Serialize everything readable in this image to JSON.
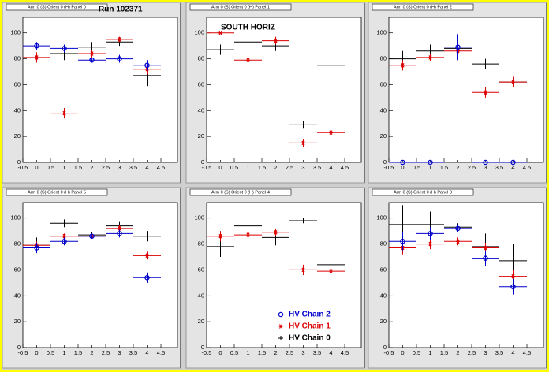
{
  "chart_data": [
    {
      "type": "errorbar",
      "title": "Arm 0 (S) Orient 0 (H) Panel 0",
      "annotation": "Run 102371",
      "x": [
        0,
        1,
        2,
        3,
        4
      ],
      "xerr": 0.5,
      "xlim": [
        -0.5,
        5.1
      ],
      "ylim": [
        0,
        112
      ],
      "xticks": [
        -0.5,
        0,
        0.5,
        1,
        1.5,
        2,
        2.5,
        3,
        3.5,
        4,
        4.5
      ],
      "yticks": [
        0,
        20,
        40,
        60,
        80,
        100
      ],
      "series": [
        {
          "name": "HV Chain 0",
          "color": "#000000",
          "marker": "plus",
          "values": [
            null,
            84,
            89,
            93,
            67
          ],
          "errors": [
            null,
            5,
            4,
            3,
            8
          ]
        },
        {
          "name": "HV Chain 1",
          "color": "#dd0000",
          "marker": "star",
          "values": [
            81,
            38,
            84,
            95,
            72
          ],
          "errors": [
            4,
            4,
            3,
            2,
            4
          ]
        },
        {
          "name": "HV Chain 2",
          "color": "#0000cc",
          "marker": "circle",
          "values": [
            90,
            88,
            79,
            80,
            75
          ],
          "errors": [
            3,
            3,
            2,
            3,
            4
          ]
        }
      ]
    },
    {
      "type": "errorbar",
      "title": "Arm 0 (S) Orient 0 (H) Panel 1",
      "annotation": "SOUTH HORIZ",
      "x": [
        0,
        1,
        2,
        3,
        4
      ],
      "xerr": 0.5,
      "xlim": [
        -0.5,
        5.1
      ],
      "ylim": [
        0,
        112
      ],
      "xticks": [
        -0.5,
        0,
        0.5,
        1,
        1.5,
        2,
        2.5,
        3,
        3.5,
        4,
        4.5
      ],
      "yticks": [
        0,
        20,
        40,
        60,
        80,
        100
      ],
      "series": [
        {
          "name": "HV Chain 0",
          "color": "#000000",
          "marker": "plus",
          "values": [
            87,
            93,
            90,
            29,
            75
          ],
          "errors": [
            4,
            5,
            4,
            3,
            5
          ]
        },
        {
          "name": "HV Chain 1",
          "color": "#dd0000",
          "marker": "star",
          "values": [
            100,
            79,
            94,
            15,
            23
          ],
          "errors": [
            0,
            8,
            3,
            3,
            5
          ]
        }
      ]
    },
    {
      "type": "errorbar",
      "title": "Arm 0 (S) Orient 0 (H) Panel 2",
      "x": [
        0,
        1,
        2,
        3,
        4
      ],
      "xerr": 0.5,
      "xlim": [
        -0.5,
        5.1
      ],
      "ylim": [
        0,
        112
      ],
      "xticks": [
        -0.5,
        0,
        0.5,
        1,
        1.5,
        2,
        2.5,
        3,
        3.5,
        4,
        4.5
      ],
      "yticks": [
        0,
        20,
        40,
        60,
        80,
        100
      ],
      "series": [
        {
          "name": "HV Chain 0",
          "color": "#000000",
          "marker": "plus",
          "values": [
            80,
            86,
            88,
            76,
            62
          ],
          "errors": [
            6,
            5,
            5,
            4,
            4
          ]
        },
        {
          "name": "HV Chain 1",
          "color": "#dd0000",
          "marker": "star",
          "values": [
            75,
            81,
            86,
            54,
            62
          ],
          "errors": [
            4,
            3,
            4,
            4,
            4
          ]
        },
        {
          "name": "HV Chain 2",
          "color": "#0000cc",
          "marker": "circle",
          "values": [
            0,
            0,
            89,
            0,
            0
          ],
          "errors": [
            0,
            0,
            10,
            0,
            0
          ]
        }
      ]
    },
    {
      "type": "errorbar",
      "title": "Arm 0 (S) Orient 0 (H) Panel 5",
      "x": [
        0,
        1,
        2,
        3,
        4
      ],
      "xerr": 0.5,
      "xlim": [
        -0.5,
        5.1
      ],
      "ylim": [
        0,
        112
      ],
      "xticks": [
        -0.5,
        0,
        0.5,
        1,
        1.5,
        2,
        2.5,
        3,
        3.5,
        4,
        4.5
      ],
      "yticks": [
        0,
        20,
        40,
        60,
        80,
        100
      ],
      "series": [
        {
          "name": "HV Chain 0",
          "color": "#000000",
          "marker": "plus",
          "values": [
            80,
            96,
            87,
            94,
            86
          ],
          "errors": [
            5,
            3,
            2,
            3,
            4
          ]
        },
        {
          "name": "HV Chain 1",
          "color": "#dd0000",
          "marker": "star",
          "values": [
            79,
            86,
            86,
            92,
            71
          ],
          "errors": [
            3,
            2,
            2,
            3,
            3
          ]
        },
        {
          "name": "HV Chain 2",
          "color": "#0000cc",
          "marker": "circle",
          "values": [
            77,
            82,
            86,
            88,
            54
          ],
          "errors": [
            4,
            3,
            2,
            3,
            4
          ]
        }
      ]
    },
    {
      "type": "errorbar",
      "title": "Arm 0 (S) Orient 0 (H) Panel 4",
      "legend": true,
      "x": [
        0,
        1,
        2,
        3,
        4
      ],
      "xerr": 0.5,
      "xlim": [
        -0.5,
        5.1
      ],
      "ylim": [
        0,
        112
      ],
      "xticks": [
        -0.5,
        0,
        0.5,
        1,
        1.5,
        2,
        2.5,
        3,
        3.5,
        4,
        4.5
      ],
      "yticks": [
        0,
        20,
        40,
        60,
        80,
        100
      ],
      "series": [
        {
          "name": "HV Chain 0",
          "color": "#000000",
          "marker": "plus",
          "values": [
            78,
            94,
            85,
            98,
            64
          ],
          "errors": [
            8,
            5,
            6,
            2,
            6
          ]
        },
        {
          "name": "HV Chain 1",
          "color": "#dd0000",
          "marker": "star",
          "values": [
            86,
            87,
            89,
            60,
            59
          ],
          "errors": [
            4,
            5,
            3,
            4,
            4
          ]
        },
        {
          "name": "HV Chain 2",
          "color": "#0000cc",
          "marker": "circle",
          "values": [
            null,
            null,
            null,
            null,
            null
          ],
          "errors": [
            null,
            null,
            null,
            null,
            null
          ]
        }
      ]
    },
    {
      "type": "errorbar",
      "title": "Arm 0 (S) Orient 0 (H) Panel 3",
      "x": [
        0,
        1,
        2,
        3,
        4
      ],
      "xerr": 0.5,
      "xlim": [
        -0.5,
        5.1
      ],
      "ylim": [
        0,
        112
      ],
      "xticks": [
        -0.5,
        0,
        0.5,
        1,
        1.5,
        2,
        2.5,
        3,
        3.5,
        4,
        4.5
      ],
      "yticks": [
        0,
        20,
        40,
        60,
        80,
        100
      ],
      "series": [
        {
          "name": "HV Chain 0",
          "color": "#000000",
          "marker": "plus",
          "values": [
            95,
            95,
            93,
            78,
            67
          ],
          "errors": [
            15,
            10,
            3,
            10,
            13
          ]
        },
        {
          "name": "HV Chain 1",
          "color": "#dd0000",
          "marker": "star",
          "values": [
            77,
            80,
            82,
            77,
            55
          ],
          "errors": [
            5,
            4,
            3,
            4,
            5
          ]
        },
        {
          "name": "HV Chain 2",
          "color": "#0000cc",
          "marker": "circle",
          "values": [
            82,
            88,
            92,
            69,
            47
          ],
          "errors": [
            7,
            5,
            3,
            6,
            6
          ]
        }
      ]
    }
  ]
}
